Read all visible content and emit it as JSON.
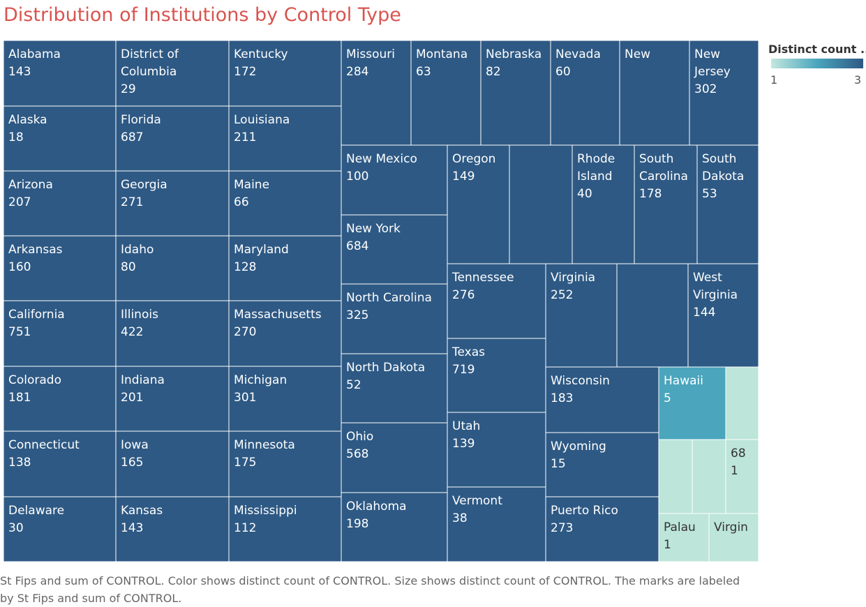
{
  "colors": {
    "title": "#d9534f",
    "count3": "#2e5984",
    "count2": "#4aa5bd",
    "count1": "#bde5da",
    "border": "#ffffff",
    "text_dark": "#ffffff",
    "text_light": "#333333"
  },
  "chart_data": {
    "type": "treemap",
    "title": "Distribution of Institutions by Control Type",
    "legend": {
      "title": "Distinct count ..",
      "min_label": "1",
      "max_label": "3",
      "placement": "top-right"
    },
    "caption": "St Fips and sum of CONTROL.  Color shows distinct count of CONTROL.  Size shows distinct count of CONTROL.  The marks are labeled by St Fips and sum of CONTROL.",
    "cells": [
      {
        "label": "Alabama",
        "sum": "143",
        "distinct": 3
      },
      {
        "label": "Alaska",
        "sum": "18",
        "distinct": 3
      },
      {
        "label": "Arizona",
        "sum": "207",
        "distinct": 3
      },
      {
        "label": "Arkansas",
        "sum": "160",
        "distinct": 3
      },
      {
        "label": "California",
        "sum": "751",
        "distinct": 3
      },
      {
        "label": "Colorado",
        "sum": "181",
        "distinct": 3
      },
      {
        "label": "Connecticut",
        "sum": "138",
        "distinct": 3
      },
      {
        "label": "Delaware",
        "sum": "30",
        "distinct": 3
      },
      {
        "label": "District of Columbia",
        "sum": "29",
        "distinct": 3
      },
      {
        "label": "Florida",
        "sum": "687",
        "distinct": 3
      },
      {
        "label": "Georgia",
        "sum": "271",
        "distinct": 3
      },
      {
        "label": "Idaho",
        "sum": "80",
        "distinct": 3
      },
      {
        "label": "Illinois",
        "sum": "422",
        "distinct": 3
      },
      {
        "label": "Indiana",
        "sum": "201",
        "distinct": 3
      },
      {
        "label": "Iowa",
        "sum": "165",
        "distinct": 3
      },
      {
        "label": "Kansas",
        "sum": "143",
        "distinct": 3
      },
      {
        "label": "Kentucky",
        "sum": "172",
        "distinct": 3
      },
      {
        "label": "Louisiana",
        "sum": "211",
        "distinct": 3
      },
      {
        "label": "Maine",
        "sum": "66",
        "distinct": 3
      },
      {
        "label": "Maryland",
        "sum": "128",
        "distinct": 3
      },
      {
        "label": "Massachusetts",
        "sum": "270",
        "distinct": 3
      },
      {
        "label": "Michigan",
        "sum": "301",
        "distinct": 3
      },
      {
        "label": "Minnesota",
        "sum": "175",
        "distinct": 3
      },
      {
        "label": "Mississippi",
        "sum": "112",
        "distinct": 3
      },
      {
        "label": "Missouri",
        "sum": "284",
        "distinct": 3
      },
      {
        "label": "Montana",
        "sum": "63",
        "distinct": 3
      },
      {
        "label": "Nebraska",
        "sum": "82",
        "distinct": 3
      },
      {
        "label": "Nevada",
        "sum": "60",
        "distinct": 3
      },
      {
        "label": "New",
        "sum": "",
        "distinct": 3
      },
      {
        "label": "New Jersey",
        "sum": "302",
        "distinct": 3
      },
      {
        "label": "New Mexico",
        "sum": "100",
        "distinct": 3
      },
      {
        "label": "New York",
        "sum": "684",
        "distinct": 3
      },
      {
        "label": "North Carolina",
        "sum": "325",
        "distinct": 3
      },
      {
        "label": "North Dakota",
        "sum": "52",
        "distinct": 3
      },
      {
        "label": "Ohio",
        "sum": "568",
        "distinct": 3
      },
      {
        "label": "Oklahoma",
        "sum": "198",
        "distinct": 3
      },
      {
        "label": "Oregon",
        "sum": "149",
        "distinct": 3
      },
      {
        "label": "",
        "sum": "",
        "distinct": 3
      },
      {
        "label": "Rhode Island",
        "sum": "40",
        "distinct": 3
      },
      {
        "label": "South Carolina",
        "sum": "178",
        "distinct": 3
      },
      {
        "label": "South Dakota",
        "sum": "53",
        "distinct": 3
      },
      {
        "label": "Tennessee",
        "sum": "276",
        "distinct": 3
      },
      {
        "label": "Texas",
        "sum": "719",
        "distinct": 3
      },
      {
        "label": "Utah",
        "sum": "139",
        "distinct": 3
      },
      {
        "label": "Vermont",
        "sum": "38",
        "distinct": 3
      },
      {
        "label": "Virginia",
        "sum": "252",
        "distinct": 3
      },
      {
        "label": "",
        "sum": "",
        "distinct": 3
      },
      {
        "label": "West Virginia",
        "sum": "144",
        "distinct": 3
      },
      {
        "label": "Wisconsin",
        "sum": "183",
        "distinct": 3
      },
      {
        "label": "Wyoming",
        "sum": "15",
        "distinct": 3
      },
      {
        "label": "Puerto Rico",
        "sum": "273",
        "distinct": 3
      },
      {
        "label": "Hawaii",
        "sum": "5",
        "distinct": 2
      },
      {
        "label": "",
        "sum": "",
        "distinct": 1
      },
      {
        "label": "",
        "sum": "",
        "distinct": 1
      },
      {
        "label": "",
        "sum": "",
        "distinct": 1
      },
      {
        "label": "68",
        "sum": "1",
        "distinct": 1
      },
      {
        "label": "Palau",
        "sum": "1",
        "distinct": 1
      },
      {
        "label": "Virgin",
        "sum": "",
        "distinct": 1
      }
    ]
  }
}
